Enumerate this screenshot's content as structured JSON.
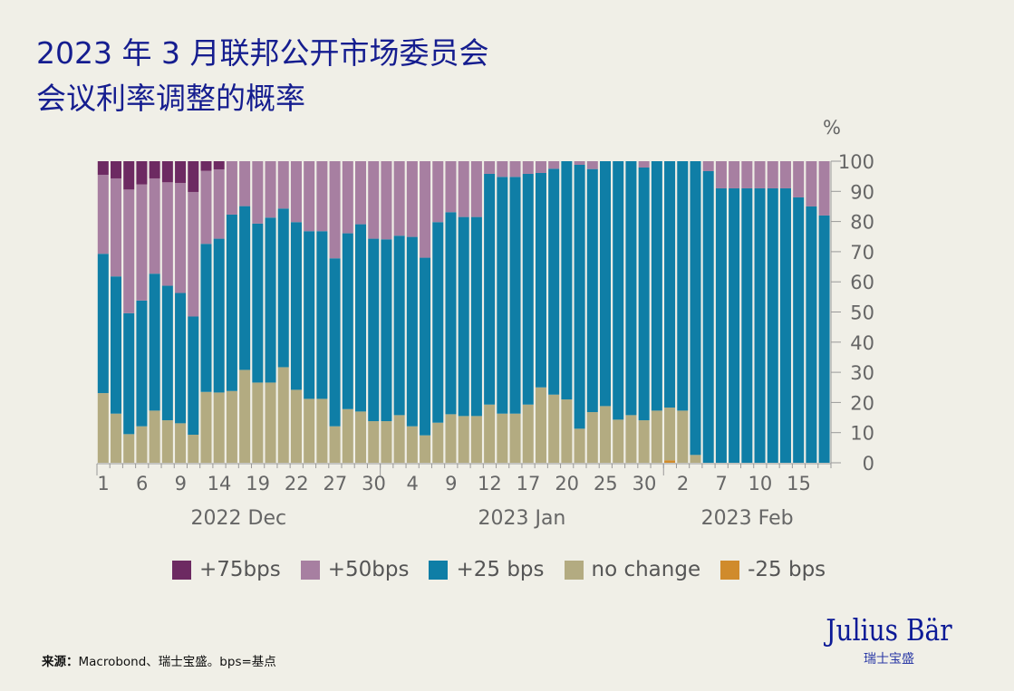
{
  "title_line1": "2023 年 3 月联邦公开市场委员会",
  "title_line2": "会议利率调整的概率",
  "source_label": "来源：",
  "source_text": "Macrobond、瑞士宝盛。bps=基点",
  "logo": {
    "name": "Julius Bär",
    "sub": "瑞士宝盛"
  },
  "chart_data": {
    "type": "bar",
    "stacked": true,
    "title": "",
    "xlabel": "",
    "ylabel": "%",
    "ylim": [
      0,
      100
    ],
    "yticks": [
      0,
      10,
      20,
      30,
      40,
      50,
      60,
      70,
      80,
      90,
      100
    ],
    "legend_position": "bottom",
    "grid": false,
    "categories": [
      "2022-12-01",
      "2022-12-02",
      "2022-12-05",
      "2022-12-06",
      "2022-12-07",
      "2022-12-08",
      "2022-12-09",
      "2022-12-12",
      "2022-12-13",
      "2022-12-14",
      "2022-12-15",
      "2022-12-16",
      "2022-12-19",
      "2022-12-20",
      "2022-12-21",
      "2022-12-22",
      "2022-12-23",
      "2022-12-26",
      "2022-12-27",
      "2022-12-28",
      "2022-12-29",
      "2022-12-30",
      "2023-01-02",
      "2023-01-03",
      "2023-01-04",
      "2023-01-05",
      "2023-01-06",
      "2023-01-09",
      "2023-01-10",
      "2023-01-11",
      "2023-01-12",
      "2023-01-13",
      "2023-01-16",
      "2023-01-17",
      "2023-01-18",
      "2023-01-19",
      "2023-01-20",
      "2023-01-23",
      "2023-01-24",
      "2023-01-25",
      "2023-01-26",
      "2023-01-27",
      "2023-01-30",
      "2023-01-31",
      "2023-02-01",
      "2023-02-02",
      "2023-02-03",
      "2023-02-06",
      "2023-02-07",
      "2023-02-08",
      "2023-02-09",
      "2023-02-10",
      "2023-02-13",
      "2023-02-14",
      "2023-02-15",
      "2023-02-16",
      "2023-02-17"
    ],
    "xticks": [
      {
        "label": "1",
        "index": 0
      },
      {
        "label": "6",
        "index": 3
      },
      {
        "label": "9",
        "index": 6
      },
      {
        "label": "14",
        "index": 9
      },
      {
        "label": "19",
        "index": 12
      },
      {
        "label": "22",
        "index": 15
      },
      {
        "label": "27",
        "index": 18
      },
      {
        "label": "30",
        "index": 21
      },
      {
        "label": "4",
        "index": 24
      },
      {
        "label": "9",
        "index": 27
      },
      {
        "label": "12",
        "index": 30
      },
      {
        "label": "17",
        "index": 33
      },
      {
        "label": "20",
        "index": 36
      },
      {
        "label": "25",
        "index": 39
      },
      {
        "label": "30",
        "index": 42
      },
      {
        "label": "2",
        "index": 45
      },
      {
        "label": "7",
        "index": 48
      },
      {
        "label": "10",
        "index": 51
      },
      {
        "label": "15",
        "index": 54
      }
    ],
    "months": [
      {
        "label": "2022 Dec",
        "start": 0,
        "end": 21
      },
      {
        "label": "2023 Jan",
        "start": 22,
        "end": 43
      },
      {
        "label": "2023 Feb",
        "start": 44,
        "end": 56
      }
    ],
    "series": [
      {
        "name": "-25 bps",
        "color": "#d08b2c",
        "values": [
          0,
          0,
          0,
          0,
          0,
          0,
          0,
          0,
          0,
          0,
          0,
          0,
          0,
          0,
          0,
          0,
          0,
          0,
          0,
          0,
          0,
          0,
          0,
          0,
          0,
          0,
          0,
          0,
          0,
          0,
          0,
          0,
          0,
          0,
          0,
          0,
          0,
          0,
          0,
          0,
          0,
          0,
          0,
          0,
          0.8,
          0,
          0,
          0,
          0,
          0,
          0,
          0,
          0,
          0,
          0,
          0,
          0
        ]
      },
      {
        "name": "no change",
        "color": "#b3ab81",
        "values": [
          23.1,
          16.3,
          9.5,
          12.1,
          17.3,
          14.1,
          13.1,
          9.3,
          23.5,
          23.3,
          23.8,
          30.8,
          26.6,
          26.6,
          31.7,
          24.2,
          21.2,
          21.2,
          12.1,
          17.8,
          17.0,
          13.8,
          13.8,
          15.8,
          12.1,
          9.1,
          13.3,
          16.1,
          15.5,
          15.5,
          19.3,
          16.3,
          16.3,
          19.3,
          25.0,
          22.6,
          21.0,
          11.3,
          16.8,
          18.8,
          14.3,
          15.8,
          14.1,
          17.3,
          17.5,
          17.3,
          2.6,
          0,
          0,
          0,
          0,
          0,
          0,
          0,
          0,
          0,
          0
        ]
      },
      {
        "name": "+25 bps",
        "color": "#0f7ea6",
        "values": [
          46.2,
          45.5,
          40.1,
          41.7,
          45.4,
          44.6,
          43.2,
          39.2,
          49.1,
          51.0,
          58.5,
          54.3,
          52.7,
          54.7,
          52.6,
          55.6,
          55.6,
          55.6,
          55.7,
          58.3,
          62.1,
          60.5,
          60.3,
          59.5,
          62.8,
          58.9,
          66.5,
          67.0,
          66.0,
          66.0,
          76.5,
          78.5,
          78.5,
          76.5,
          71.1,
          74.9,
          79.0,
          87.5,
          80.6,
          81.2,
          85.7,
          84.2,
          83.8,
          82.7,
          81.7,
          82.7,
          97.4,
          96.7,
          91,
          91,
          91,
          91,
          91,
          91,
          88,
          85,
          82
        ]
      },
      {
        "name": "+50bps",
        "color": "#a77fa1",
        "values": [
          26.2,
          32.5,
          41.0,
          38.5,
          31.6,
          34.3,
          36.5,
          41.3,
          24.2,
          23.0,
          17.7,
          14.9,
          20.7,
          18.7,
          15.7,
          20.2,
          23.2,
          23.2,
          32.2,
          23.9,
          20.9,
          25.7,
          25.9,
          24.7,
          25.1,
          32.0,
          20.2,
          16.9,
          18.5,
          18.5,
          4.2,
          5.2,
          5.2,
          4.2,
          3.9,
          2.5,
          0,
          1.2,
          2.6,
          0,
          0,
          0,
          2.1,
          0,
          0,
          0,
          0,
          3.3,
          9,
          9,
          9,
          9,
          9,
          9,
          12,
          15,
          18
        ]
      },
      {
        "name": "+75bps",
        "color": "#6d2a62",
        "values": [
          4.5,
          5.7,
          9.4,
          7.7,
          5.7,
          7.0,
          7.2,
          10.2,
          3.2,
          2.7,
          0,
          0,
          0,
          0,
          0,
          0,
          0,
          0,
          0,
          0,
          0,
          0,
          0,
          0,
          0,
          0,
          0,
          0,
          0,
          0,
          0,
          0,
          0,
          0,
          0,
          0,
          0,
          0,
          0,
          0,
          0,
          0,
          0,
          0,
          0,
          0,
          0,
          0,
          0,
          0,
          0,
          0,
          0,
          0,
          0,
          0,
          0
        ]
      }
    ],
    "legend_order": [
      "+75bps",
      "+50bps",
      "+25 bps",
      "no change",
      "-25 bps"
    ]
  }
}
